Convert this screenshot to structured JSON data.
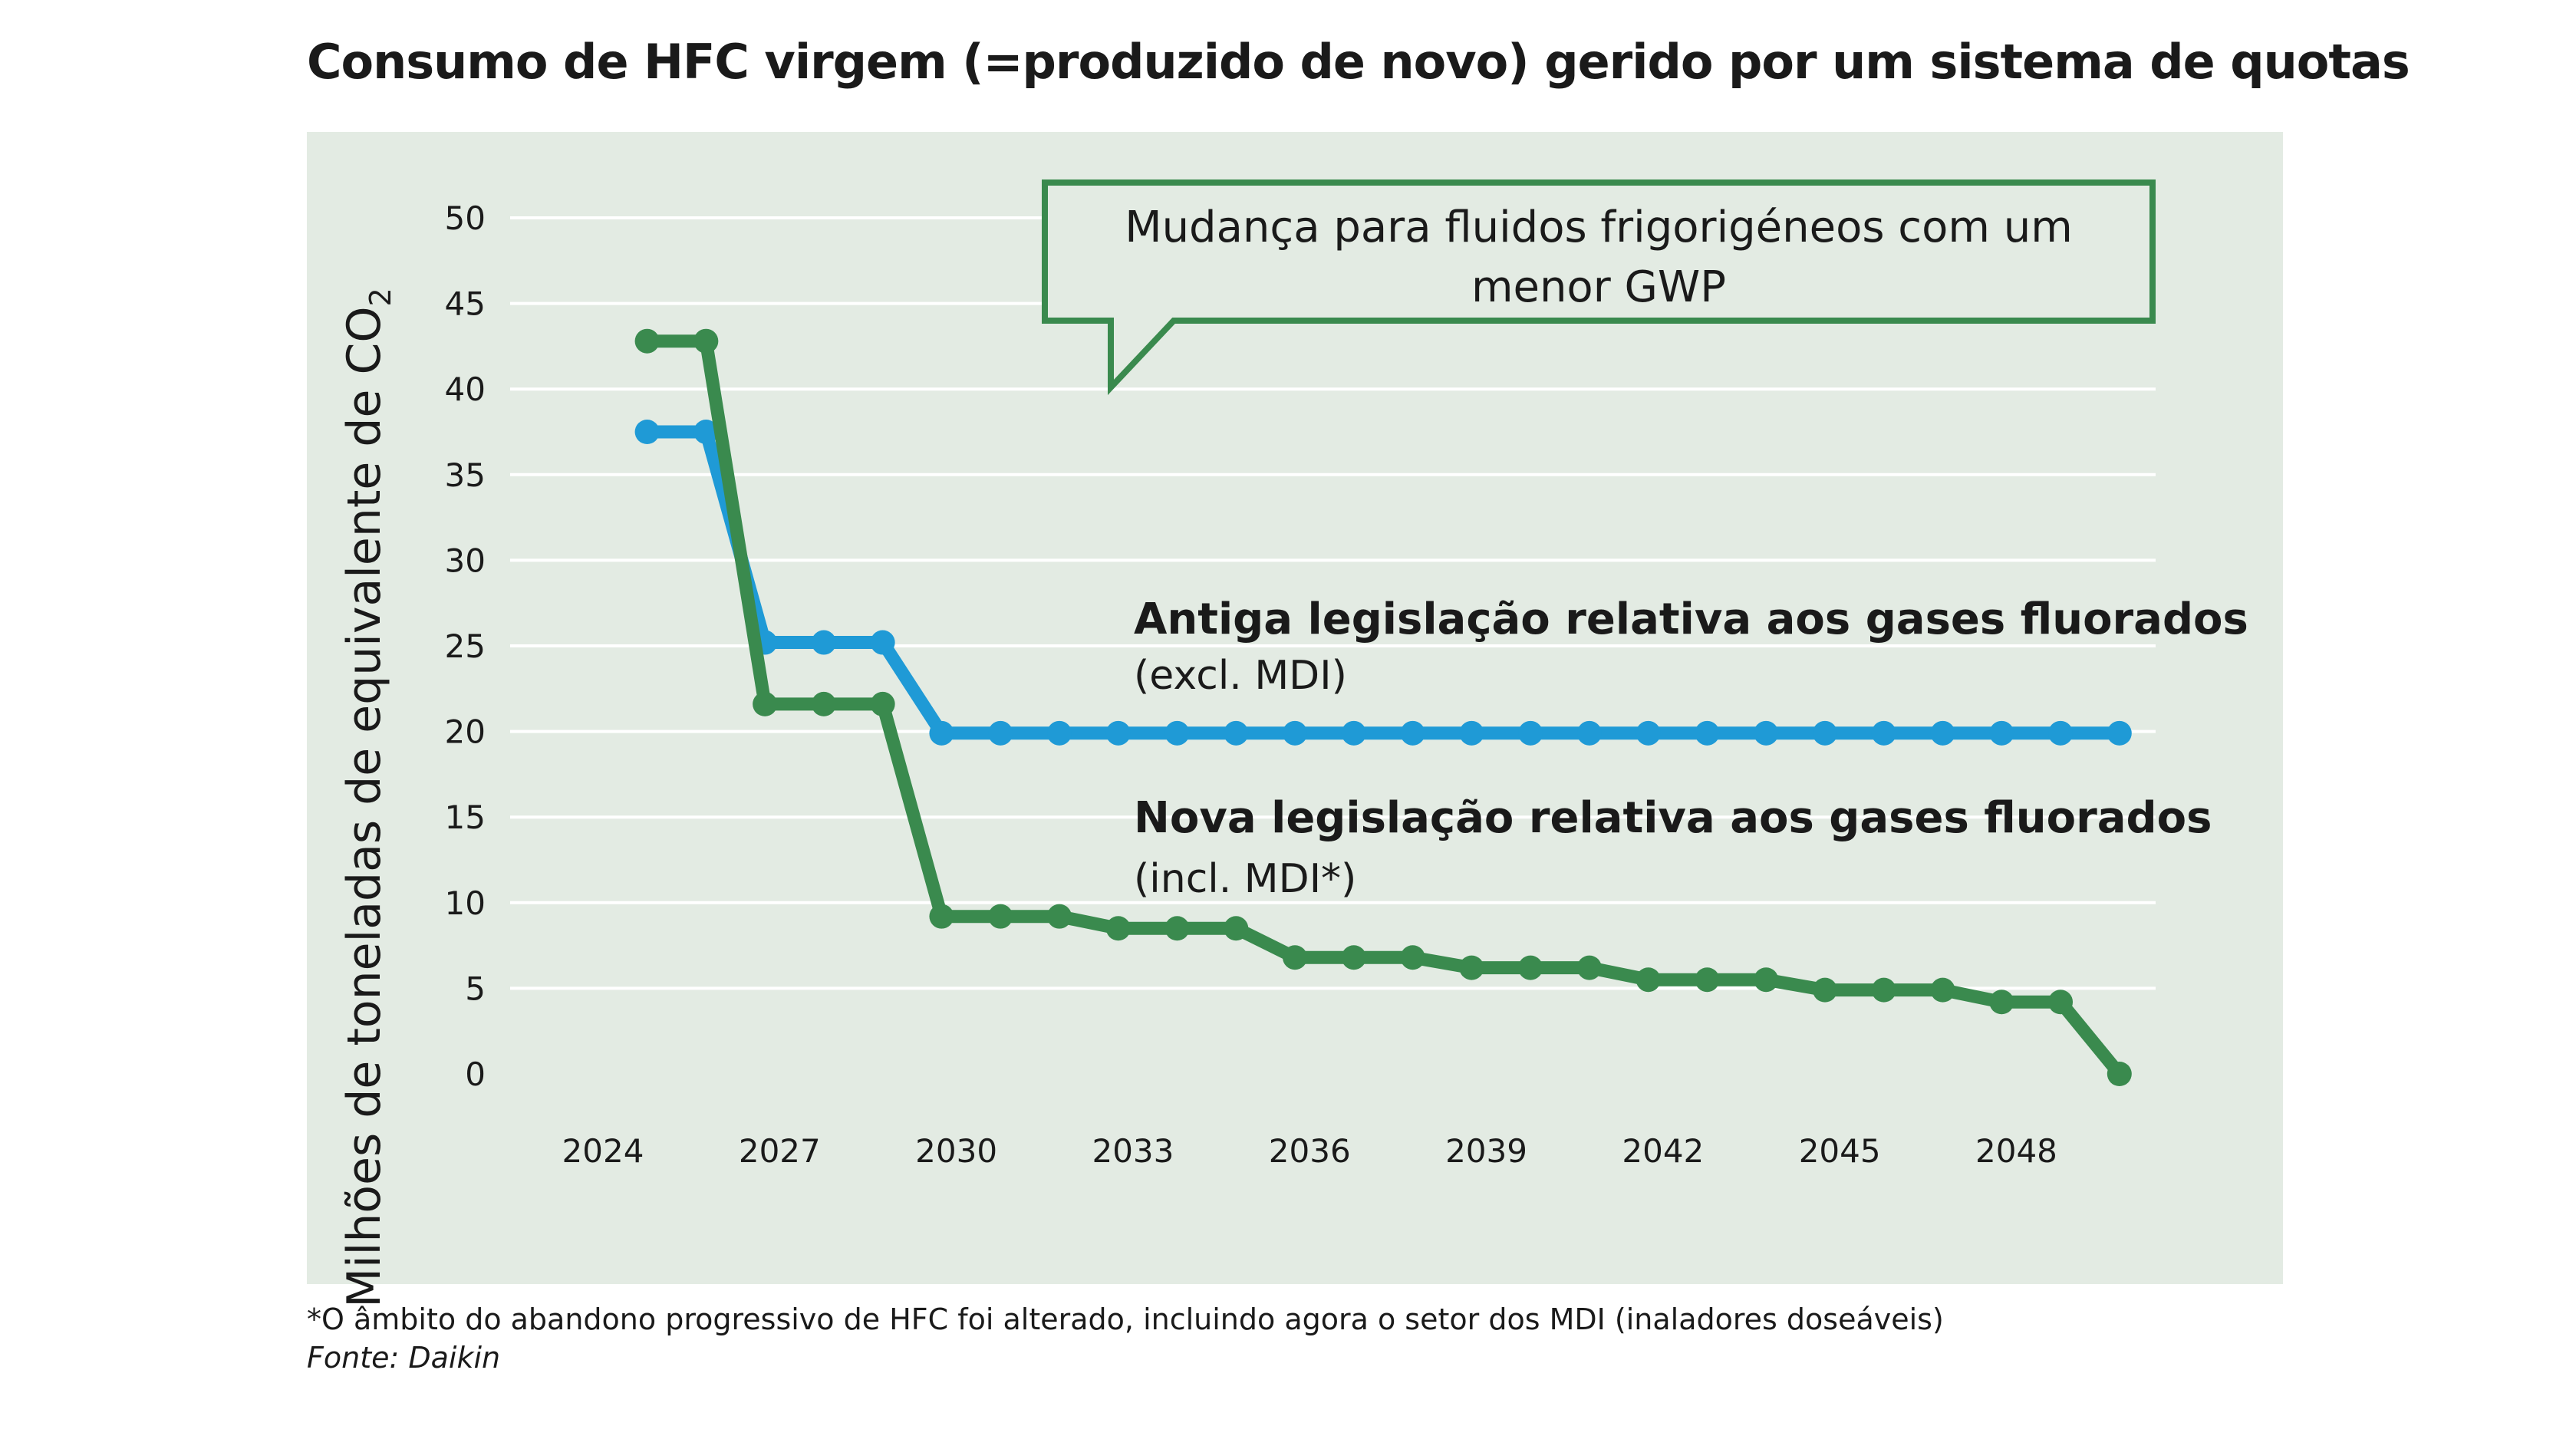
{
  "header": {
    "title": "Consumo de HFC virgem (=produzido de novo) gerido por um sistema de quotas"
  },
  "chart_data": {
    "type": "line",
    "ylabel": "Milhões de toneladas de equivalente de CO",
    "ylabel_subscript": "2",
    "ylim": [
      0,
      50
    ],
    "y_ticks": [
      0,
      5,
      10,
      15,
      20,
      25,
      30,
      35,
      40,
      45,
      50
    ],
    "y_tick_labels": [
      "0",
      "5",
      "10",
      "15",
      "20",
      "25",
      "30",
      "35",
      "40",
      "45",
      "50"
    ],
    "xlim": [
      2024,
      2050
    ],
    "x_ticks": [
      2024,
      2027,
      2030,
      2033,
      2036,
      2039,
      2042,
      2045,
      2048
    ],
    "x_tick_labels": [
      "2024",
      "2027",
      "2030",
      "2033",
      "2036",
      "2039",
      "2042",
      "2045",
      "2048"
    ],
    "x": [
      2024.75,
      2025.75,
      2026.75,
      2027.75,
      2028.75,
      2029.75,
      2030.75,
      2031.75,
      2032.75,
      2033.75,
      2034.75,
      2035.75,
      2036.75,
      2037.75,
      2038.75,
      2039.75,
      2040.75,
      2041.75,
      2042.75,
      2043.75,
      2044.75,
      2045.75,
      2046.75,
      2047.75,
      2048.75,
      2049.75
    ],
    "series": [
      {
        "name": "Antiga legislação relativa aos gases fluorados",
        "subtitle": "(excl. MDI)",
        "color": "#1f9ad6",
        "values": [
          37.5,
          37.5,
          25.2,
          25.2,
          25.2,
          19.9,
          19.9,
          19.9,
          19.9,
          19.9,
          19.9,
          19.9,
          19.9,
          19.9,
          19.9,
          19.9,
          19.9,
          19.9,
          19.9,
          19.9,
          19.9,
          19.9,
          19.9,
          19.9,
          19.9,
          19.9
        ]
      },
      {
        "name": "Nova legislação relativa aos gases fluorados",
        "subtitle": "(incl. MDI*)",
        "color": "#3a8a4e",
        "values": [
          42.8,
          42.8,
          21.6,
          21.6,
          21.6,
          9.2,
          9.2,
          9.2,
          8.5,
          8.5,
          8.5,
          6.8,
          6.8,
          6.8,
          6.2,
          6.2,
          6.2,
          5.5,
          5.5,
          5.5,
          4.9,
          4.9,
          4.9,
          4.2,
          4.2,
          0.0
        ]
      }
    ],
    "annotation": "Mudança para fluidos frigorigéneos com um menor GWP",
    "annotation_line1": "Mudança para fluidos frigorigéneos com um",
    "annotation_line2": "menor GWP"
  },
  "footer": {
    "footnote": "*O âmbito do abandono progressivo de HFC foi alterado, incluindo agora o setor dos MDI (inaladores doseáveis)",
    "source": "Fonte: Daikin"
  },
  "colors": {
    "panel": "#e3ebe3",
    "grid": "#ffffff",
    "callout_border": "#3a8a4e"
  }
}
